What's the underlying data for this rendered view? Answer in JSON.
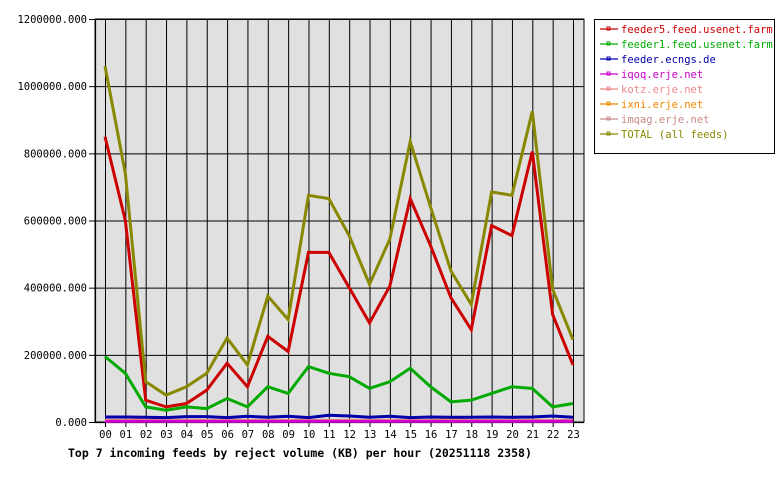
{
  "chart_data": {
    "type": "line",
    "title": "Top 7 incoming feeds by reject volume (KB) per hour (20251118 2358)",
    "xlabel": "",
    "ylabel": "",
    "ylim": [
      0,
      1200000
    ],
    "grid": true,
    "legend_position": "right-top",
    "categories": [
      "00",
      "01",
      "02",
      "03",
      "04",
      "05",
      "06",
      "07",
      "08",
      "09",
      "10",
      "11",
      "12",
      "13",
      "14",
      "15",
      "16",
      "17",
      "18",
      "19",
      "20",
      "21",
      "22",
      "23"
    ],
    "y_ticks": [
      "0.000",
      "200000.000",
      "400000.000",
      "600000.000",
      "800000.000",
      "1000000.000",
      "1200000.000"
    ],
    "y_tick_values": [
      0,
      200000,
      400000,
      600000,
      800000,
      1000000,
      1200000
    ],
    "series": [
      {
        "name": "feeder5.feed.usenet.farm",
        "color": "#cc0000",
        "values": [
          850000,
          600000,
          65000,
          45000,
          55000,
          95000,
          175000,
          105000,
          255000,
          210000,
          505000,
          505000,
          400000,
          295000,
          405000,
          665000,
          525000,
          370000,
          275000,
          585000,
          555000,
          805000,
          320000,
          170000
        ]
      },
      {
        "name": "feeder1.feed.usenet.farm",
        "color": "#00aa00",
        "values": [
          195000,
          145000,
          45000,
          35000,
          45000,
          40000,
          70000,
          45000,
          105000,
          85000,
          165000,
          145000,
          135000,
          100000,
          120000,
          160000,
          105000,
          60000,
          65000,
          85000,
          105000,
          100000,
          45000,
          55000
        ]
      },
      {
        "name": "feeder.ecngs.de",
        "color": "#0000aa",
        "values": [
          15000,
          15000,
          14000,
          13000,
          16000,
          16000,
          13000,
          17000,
          14000,
          17000,
          13000,
          20000,
          18000,
          14000,
          17000,
          13000,
          15000,
          14000,
          14000,
          15000,
          14000,
          15000,
          18000,
          14000
        ]
      },
      {
        "name": "iqoq.erje.net",
        "color": "#cc00cc",
        "values": [
          2000,
          2000,
          2000,
          2000,
          2000,
          2000,
          2000,
          2000,
          2000,
          2000,
          2000,
          2000,
          2000,
          2000,
          2000,
          2000,
          2000,
          2000,
          2000,
          2000,
          2000,
          2000,
          2000,
          2000
        ]
      },
      {
        "name": "kotz.erje.net",
        "color": "#ee8888",
        "values": [
          5000,
          5000,
          6000,
          5000,
          5000,
          5000,
          5000,
          5000,
          5000,
          5000,
          5000,
          5000,
          5000,
          5000,
          5000,
          5000,
          5000,
          5000,
          5000,
          5000,
          5000,
          5000,
          5000,
          5000
        ]
      },
      {
        "name": "ixni.erje.net",
        "color": "#ee8800",
        "values": [
          3000,
          3000,
          9000,
          3000,
          3000,
          3000,
          3000,
          3000,
          3000,
          3000,
          3000,
          3000,
          3000,
          3000,
          3000,
          3000,
          3000,
          9000,
          3000,
          3000,
          3000,
          3000,
          3000,
          3000
        ]
      },
      {
        "name": "imqag.erje.net",
        "color": "#cc8888",
        "values": [
          4000,
          4000,
          4000,
          4000,
          4000,
          4000,
          4000,
          4000,
          4000,
          4000,
          4000,
          4000,
          4000,
          4000,
          4000,
          4000,
          4000,
          4000,
          4000,
          4000,
          4000,
          4000,
          4000,
          4000
        ]
      },
      {
        "name": "TOTAL (all feeds)",
        "color": "#888800",
        "values": [
          1060000,
          740000,
          120000,
          80000,
          105000,
          145000,
          250000,
          170000,
          375000,
          305000,
          675000,
          665000,
          555000,
          410000,
          545000,
          835000,
          640000,
          450000,
          350000,
          685000,
          675000,
          925000,
          395000,
          245000
        ]
      }
    ]
  },
  "colors": {
    "plot_background": "#e0e0e0",
    "grid": "#000000",
    "axis": "#000000"
  }
}
